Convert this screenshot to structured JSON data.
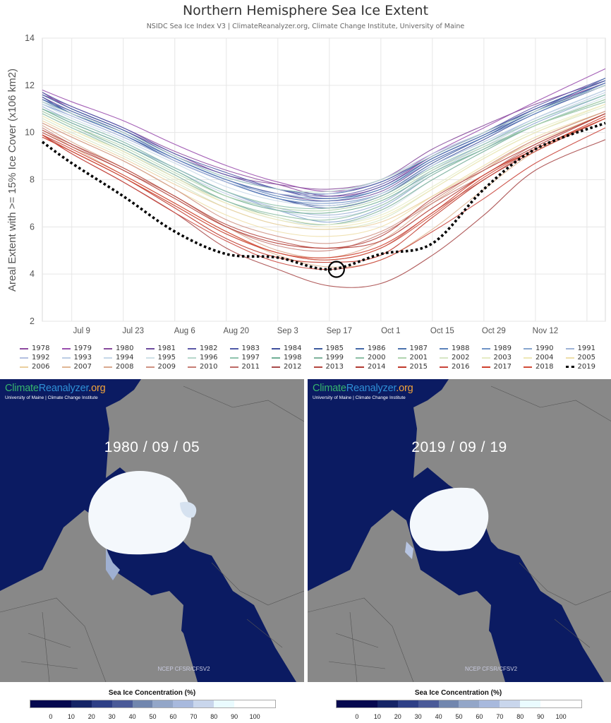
{
  "header": {
    "title": "Northern Hemisphere Sea Ice Extent",
    "subtitle": "NSIDC Sea Ice Index V3 | ClimateReanalyzer.org, Climate Change Institute, University of Maine"
  },
  "chart_data": {
    "type": "line",
    "title": "Northern Hemisphere Sea Ice Extent",
    "xlabel": "",
    "ylabel": "Areal Extent with >= 15% Ice Cover (x106 km2)",
    "ylim": [
      2,
      14
    ],
    "yticks": [
      "2",
      "4",
      "6",
      "8",
      "10",
      "12",
      "14"
    ],
    "xticks": [
      "Jul 9",
      "Jul 23",
      "Aug 6",
      "Aug 20",
      "Sep 3",
      "Sep 17",
      "Oct 1",
      "Oct 15",
      "Oct 29",
      "Nov 12"
    ],
    "xtick_days": [
      8,
      22,
      36,
      50,
      64,
      78,
      92,
      106,
      120,
      134
    ],
    "xlim_days": [
      0,
      153
    ],
    "x_days_note": "days since Jul 1",
    "x": [
      "Jul 1",
      "Jul 9",
      "Jul 23",
      "Aug 6",
      "Aug 20",
      "Sep 3",
      "Sep 17",
      "Oct 1",
      "Oct 15",
      "Oct 29",
      "Nov 12",
      "Dec 1"
    ],
    "x_days": [
      0,
      8,
      22,
      36,
      50,
      64,
      78,
      92,
      106,
      120,
      134,
      153
    ],
    "grid": true,
    "legend_position": "bottom",
    "highlight": {
      "series": "2019",
      "x": "Sep 17",
      "y": 4.2
    },
    "series": [
      {
        "name": "1978",
        "color": "#8e4aa0",
        "values": [
          11.6,
          11.1,
          10.2,
          9.2,
          8.4,
          7.8,
          7.3,
          7.7,
          9.0,
          10.0,
          11.0,
          12.1
        ]
      },
      {
        "name": "1979",
        "color": "#9a4fae",
        "values": [
          11.8,
          11.3,
          10.5,
          9.5,
          8.6,
          7.9,
          7.5,
          7.9,
          9.1,
          10.2,
          11.3,
          12.7
        ]
      },
      {
        "name": "1980",
        "color": "#874b9c",
        "values": [
          11.7,
          11.0,
          10.1,
          9.1,
          8.2,
          7.8,
          7.6,
          8.0,
          9.3,
          10.3,
          11.2,
          12.2
        ]
      },
      {
        "name": "1981",
        "color": "#6d4c9e",
        "values": [
          11.5,
          10.9,
          10.0,
          8.9,
          8.0,
          7.4,
          7.1,
          7.5,
          8.8,
          9.8,
          10.9,
          12.0
        ]
      },
      {
        "name": "1982",
        "color": "#5d58a8",
        "values": [
          11.6,
          11.0,
          10.1,
          9.0,
          8.2,
          7.6,
          7.3,
          7.8,
          9.0,
          10.0,
          11.1,
          12.3
        ]
      },
      {
        "name": "1983",
        "color": "#4f59a8",
        "values": [
          11.7,
          11.1,
          10.2,
          9.1,
          8.3,
          7.6,
          7.2,
          7.7,
          8.9,
          9.9,
          11.0,
          12.2
        ]
      },
      {
        "name": "1984",
        "color": "#3f4f9e",
        "values": [
          11.5,
          10.8,
          9.9,
          8.8,
          7.9,
          7.2,
          6.8,
          7.3,
          8.6,
          9.7,
          10.8,
          12.0
        ]
      },
      {
        "name": "1985",
        "color": "#3d5a9e",
        "values": [
          11.4,
          10.8,
          9.9,
          8.8,
          7.9,
          7.2,
          6.9,
          7.4,
          8.7,
          9.8,
          10.9,
          12.1
        ]
      },
      {
        "name": "1986",
        "color": "#4468a8",
        "values": [
          11.6,
          11.0,
          10.1,
          9.0,
          8.1,
          7.6,
          7.4,
          7.9,
          9.0,
          10.0,
          11.0,
          12.2
        ]
      },
      {
        "name": "1987",
        "color": "#4b72ad",
        "values": [
          11.4,
          10.9,
          10.0,
          8.9,
          8.0,
          7.4,
          7.2,
          7.6,
          8.9,
          9.9,
          10.9,
          12.3
        ]
      },
      {
        "name": "1988",
        "color": "#5b82bb",
        "values": [
          11.3,
          10.8,
          9.9,
          8.9,
          8.0,
          7.3,
          7.1,
          7.6,
          8.8,
          9.8,
          10.8,
          12.1
        ]
      },
      {
        "name": "1989",
        "color": "#6f93c6",
        "values": [
          11.2,
          10.7,
          9.8,
          8.8,
          7.9,
          7.2,
          7.0,
          7.4,
          8.6,
          9.6,
          10.6,
          11.8
        ]
      },
      {
        "name": "1990",
        "color": "#88a6cf",
        "values": [
          11.0,
          10.4,
          9.5,
          8.5,
          7.5,
          6.7,
          6.2,
          6.8,
          8.2,
          9.3,
          10.4,
          11.6
        ]
      },
      {
        "name": "1991",
        "color": "#9db3d6",
        "values": [
          11.1,
          10.5,
          9.6,
          8.5,
          7.5,
          6.8,
          6.5,
          7.0,
          8.4,
          9.5,
          10.6,
          11.8
        ]
      },
      {
        "name": "1992",
        "color": "#b3bfe0",
        "values": [
          11.3,
          10.7,
          9.8,
          8.8,
          7.9,
          7.4,
          7.4,
          8.0,
          9.1,
          10.0,
          10.9,
          12.0
        ]
      },
      {
        "name": "1993",
        "color": "#bccde4",
        "values": [
          11.0,
          10.4,
          9.5,
          8.4,
          7.4,
          6.7,
          6.4,
          6.9,
          8.3,
          9.4,
          10.5,
          11.7
        ]
      },
      {
        "name": "1994",
        "color": "#c6d8e8",
        "values": [
          11.2,
          10.6,
          9.7,
          8.7,
          7.7,
          7.1,
          6.9,
          7.4,
          8.6,
          9.6,
          10.6,
          11.8
        ]
      },
      {
        "name": "1995",
        "color": "#cfe0e7",
        "values": [
          10.8,
          10.2,
          9.3,
          8.1,
          7.0,
          6.3,
          6.1,
          6.6,
          8.0,
          9.2,
          10.3,
          11.5
        ]
      },
      {
        "name": "1996",
        "color": "#b6d7cb",
        "values": [
          11.3,
          10.8,
          10.0,
          9.0,
          8.1,
          7.6,
          7.5,
          8.0,
          9.0,
          10.0,
          10.9,
          12.0
        ]
      },
      {
        "name": "1997",
        "color": "#8fc3ad",
        "values": [
          11.0,
          10.5,
          9.6,
          8.5,
          7.5,
          6.9,
          6.8,
          7.3,
          8.5,
          9.5,
          10.5,
          11.6
        ]
      },
      {
        "name": "1998",
        "color": "#6fae95",
        "values": [
          11.0,
          10.4,
          9.5,
          8.4,
          7.3,
          6.7,
          6.6,
          7.1,
          8.3,
          9.3,
          10.3,
          11.4
        ]
      },
      {
        "name": "1999",
        "color": "#7fb39c",
        "values": [
          10.9,
          10.3,
          9.3,
          8.2,
          7.1,
          6.4,
          6.1,
          6.7,
          8.0,
          9.2,
          10.3,
          11.4
        ]
      },
      {
        "name": "2000",
        "color": "#8dbfa5",
        "values": [
          10.8,
          10.2,
          9.2,
          8.1,
          7.1,
          6.5,
          6.3,
          6.9,
          8.2,
          9.3,
          10.3,
          11.3
        ]
      },
      {
        "name": "2001",
        "color": "#b0d4ae",
        "values": [
          10.9,
          10.3,
          9.4,
          8.3,
          7.3,
          6.8,
          6.7,
          7.2,
          8.4,
          9.4,
          10.3,
          11.4
        ]
      },
      {
        "name": "2002",
        "color": "#d6e6c4",
        "values": [
          10.6,
          10.0,
          9.0,
          7.9,
          6.8,
          6.1,
          5.9,
          6.3,
          7.6,
          8.9,
          10.0,
          11.1
        ]
      },
      {
        "name": "2003",
        "color": "#e6ecc4",
        "values": [
          10.7,
          10.1,
          9.1,
          8.0,
          7.0,
          6.4,
          6.1,
          6.5,
          7.7,
          9.0,
          10.1,
          11.2
        ]
      },
      {
        "name": "2004",
        "color": "#eee8b6",
        "values": [
          10.7,
          10.1,
          9.2,
          8.1,
          7.0,
          6.3,
          6.0,
          6.4,
          7.6,
          8.9,
          10.0,
          11.2
        ]
      },
      {
        "name": "2005",
        "color": "#eedfaa",
        "values": [
          10.4,
          9.8,
          8.8,
          7.6,
          6.5,
          5.8,
          5.6,
          6.0,
          7.3,
          8.6,
          9.8,
          10.9
        ]
      },
      {
        "name": "2006",
        "color": "#ebcf9e",
        "values": [
          10.5,
          9.9,
          8.9,
          7.8,
          6.8,
          6.1,
          5.9,
          6.2,
          7.3,
          8.5,
          9.6,
          10.8
        ]
      },
      {
        "name": "2007",
        "color": "#e0b694",
        "values": [
          10.1,
          9.4,
          8.2,
          7.0,
          5.8,
          4.8,
          4.3,
          4.6,
          5.9,
          7.6,
          9.2,
          10.6
        ]
      },
      {
        "name": "2008",
        "color": "#d9a88e",
        "values": [
          10.3,
          9.6,
          8.5,
          7.3,
          6.0,
          5.0,
          4.7,
          5.4,
          7.0,
          8.4,
          9.7,
          10.9
        ]
      },
      {
        "name": "2009",
        "color": "#cf9283",
        "values": [
          10.4,
          9.8,
          8.8,
          7.6,
          6.3,
          5.6,
          5.3,
          5.8,
          7.1,
          8.5,
          9.7,
          10.9
        ]
      },
      {
        "name": "2010",
        "color": "#c77d75",
        "values": [
          10.2,
          9.5,
          8.4,
          7.3,
          6.0,
          5.2,
          5.0,
          5.7,
          7.0,
          8.2,
          9.5,
          10.8
        ]
      },
      {
        "name": "2011",
        "color": "#bd6a66",
        "values": [
          9.9,
          9.2,
          8.1,
          6.9,
          5.7,
          4.9,
          4.6,
          5.1,
          6.6,
          8.0,
          9.3,
          10.6
        ]
      },
      {
        "name": "2012",
        "color": "#a84a4a",
        "values": [
          9.9,
          9.1,
          7.9,
          6.6,
          5.1,
          4.2,
          3.5,
          3.6,
          4.8,
          6.5,
          8.4,
          9.7
        ]
      },
      {
        "name": "2013",
        "color": "#b5463f",
        "values": [
          10.1,
          9.5,
          8.5,
          7.3,
          6.1,
          5.4,
          5.1,
          5.6,
          7.2,
          8.4,
          9.5,
          10.8
        ]
      },
      {
        "name": "2014",
        "color": "#b23a32",
        "values": [
          10.0,
          9.4,
          8.4,
          7.2,
          6.0,
          5.3,
          5.1,
          5.4,
          6.8,
          8.2,
          9.4,
          10.8
        ]
      },
      {
        "name": "2015",
        "color": "#c0392b",
        "values": [
          9.8,
          9.2,
          8.1,
          6.8,
          5.5,
          4.7,
          4.5,
          4.8,
          6.4,
          8.0,
          9.2,
          10.6
        ]
      },
      {
        "name": "2016",
        "color": "#c9443a",
        "values": [
          9.9,
          9.1,
          7.9,
          6.6,
          5.4,
          4.5,
          4.2,
          4.6,
          5.8,
          7.2,
          8.7,
          10.2
        ]
      },
      {
        "name": "2017",
        "color": "#cf3f2d",
        "values": [
          9.9,
          9.3,
          8.2,
          7.0,
          5.8,
          4.9,
          4.7,
          5.2,
          6.6,
          8.2,
          9.3,
          10.7
        ]
      },
      {
        "name": "2018",
        "color": "#d24c38",
        "values": [
          9.8,
          9.2,
          8.1,
          6.9,
          5.7,
          4.9,
          4.6,
          5.1,
          6.5,
          8.1,
          9.3,
          10.6
        ]
      },
      {
        "name": "2019",
        "color": "#000000",
        "values": [
          9.6,
          8.7,
          7.3,
          5.8,
          4.85,
          4.7,
          4.2,
          4.85,
          5.3,
          7.6,
          9.3,
          10.4
        ],
        "style": "dotted"
      }
    ]
  },
  "maps": [
    {
      "brand": {
        "part1": "Climate",
        "part2": "Reanalyzer",
        "part3": ".org"
      },
      "brand_sub": "University of Maine | Climate Change Institute",
      "date": "1980 / 09 / 05",
      "source": "NCEP CFSR/CFSV2"
    },
    {
      "brand": {
        "part1": "Climate",
        "part2": "Reanalyzer",
        "part3": ".org"
      },
      "brand_sub": "University of Maine | Climate Change Institute",
      "date": "2019 / 09 / 19",
      "source": "NCEP CFSR/CFSV2"
    }
  ],
  "colorbar": {
    "title": "Sea Ice Concentration (%)",
    "labels": [
      "0",
      "10",
      "20",
      "30",
      "40",
      "50",
      "60",
      "70",
      "80",
      "90",
      "100"
    ],
    "colors": [
      "#06094f",
      "#152466",
      "#2e3f86",
      "#4a5a98",
      "#7186ae",
      "#93a6c8",
      "#a8b9dd",
      "#c9d6ec",
      "#eafbff",
      "#ffffff",
      "#ffffff"
    ]
  }
}
